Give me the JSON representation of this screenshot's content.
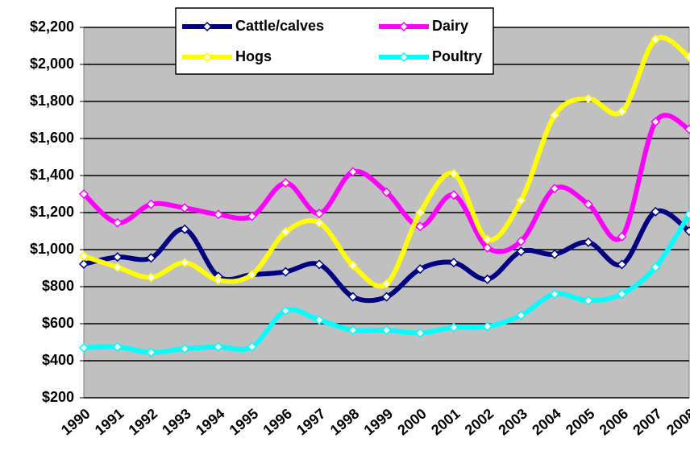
{
  "chart_data": {
    "type": "line",
    "categories": [
      "1990",
      "1991",
      "1992",
      "1993",
      "1994",
      "1995",
      "1996",
      "1997",
      "1998",
      "1999",
      "2000",
      "2001",
      "2002",
      "2003",
      "2004",
      "2005",
      "2006",
      "2007",
      "2008"
    ],
    "series": [
      {
        "name": "Cattle/calves",
        "color": "#000080",
        "values": [
          922,
          960,
          955,
          1110,
          855,
          865,
          880,
          920,
          745,
          745,
          895,
          930,
          840,
          990,
          975,
          1040,
          920,
          1205,
          1100
        ]
      },
      {
        "name": "Dairy",
        "color": "#ff00ff",
        "values": [
          1300,
          1145,
          1245,
          1225,
          1190,
          1180,
          1360,
          1195,
          1420,
          1310,
          1125,
          1295,
          1010,
          1045,
          1330,
          1245,
          1070,
          1690,
          1650
        ]
      },
      {
        "name": "Hogs",
        "color": "#ffff00",
        "values": [
          965,
          905,
          850,
          930,
          835,
          865,
          1095,
          1145,
          915,
          815,
          1200,
          1410,
          1055,
          1265,
          1725,
          1815,
          1745,
          2135,
          2040
        ]
      },
      {
        "name": "Poultry",
        "color": "#00ffff",
        "values": [
          470,
          475,
          445,
          465,
          475,
          475,
          670,
          620,
          565,
          565,
          550,
          580,
          585,
          645,
          760,
          725,
          760,
          905,
          1190
        ]
      }
    ],
    "ylim": [
      200,
      2200
    ],
    "yticks": [
      {
        "value": 200,
        "label": "$200"
      },
      {
        "value": 400,
        "label": "$400"
      },
      {
        "value": 600,
        "label": "$600"
      },
      {
        "value": 800,
        "label": "$800"
      },
      {
        "value": 1000,
        "label": "$1,000"
      },
      {
        "value": 1200,
        "label": "$1,200"
      },
      {
        "value": 1400,
        "label": "$1,400"
      },
      {
        "value": 1600,
        "label": "$1,600"
      },
      {
        "value": 1800,
        "label": "$1,800"
      },
      {
        "value": 2000,
        "label": "$2,000"
      },
      {
        "value": 2200,
        "label": "$2,200"
      }
    ],
    "grid": true,
    "legend": "top",
    "smooth": true
  }
}
